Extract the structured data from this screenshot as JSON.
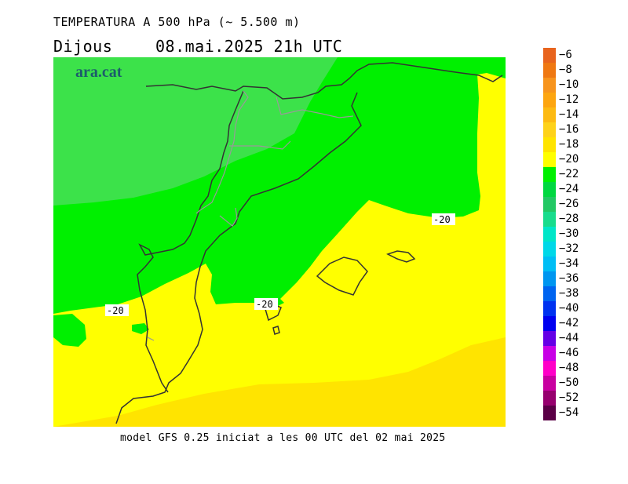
{
  "header": {
    "title": "TEMPERATURA A 500 hPa (~ 5.500 m)",
    "day": "Dijous",
    "datetime": "08.mai.2025 21h UTC"
  },
  "map": {
    "brand": "ara.cat",
    "contour_labels": [
      "-20",
      "-20",
      "-20"
    ],
    "colors": {
      "zone_lt_minus22": "#3ce24a",
      "zone_minus22_minus20": "#00f000",
      "zone_minus20_minus18": "#ffff00",
      "zone_minus18_minus16": "#ffe400",
      "coast": "#333333",
      "border": "#999999"
    }
  },
  "legend": {
    "labels": [
      "-6",
      "-8",
      "-10",
      "-12",
      "-14",
      "-16",
      "-18",
      "-20",
      "-22",
      "-24",
      "-26",
      "-28",
      "-30",
      "-32",
      "-34",
      "-36",
      "-38",
      "-40",
      "-42",
      "-44",
      "-46",
      "-48",
      "-50",
      "-52",
      "-54"
    ],
    "colors": [
      "#e8641e",
      "#ef7812",
      "#f7941d",
      "#fda50f",
      "#fdba12",
      "#fed21a",
      "#ffe400",
      "#ffff00",
      "#00f000",
      "#00d840",
      "#22c864",
      "#18dc8c",
      "#00e6c8",
      "#00d8e8",
      "#00bef5",
      "#0096f0",
      "#0064f0",
      "#0032f0",
      "#0000f0",
      "#6400e6",
      "#c800e6",
      "#ff00c8",
      "#c800a0",
      "#96006e",
      "#5a0046"
    ]
  },
  "footer": {
    "text": "model GFS 0.25 iniciat a les 00 UTC del 02 mai 2025"
  }
}
